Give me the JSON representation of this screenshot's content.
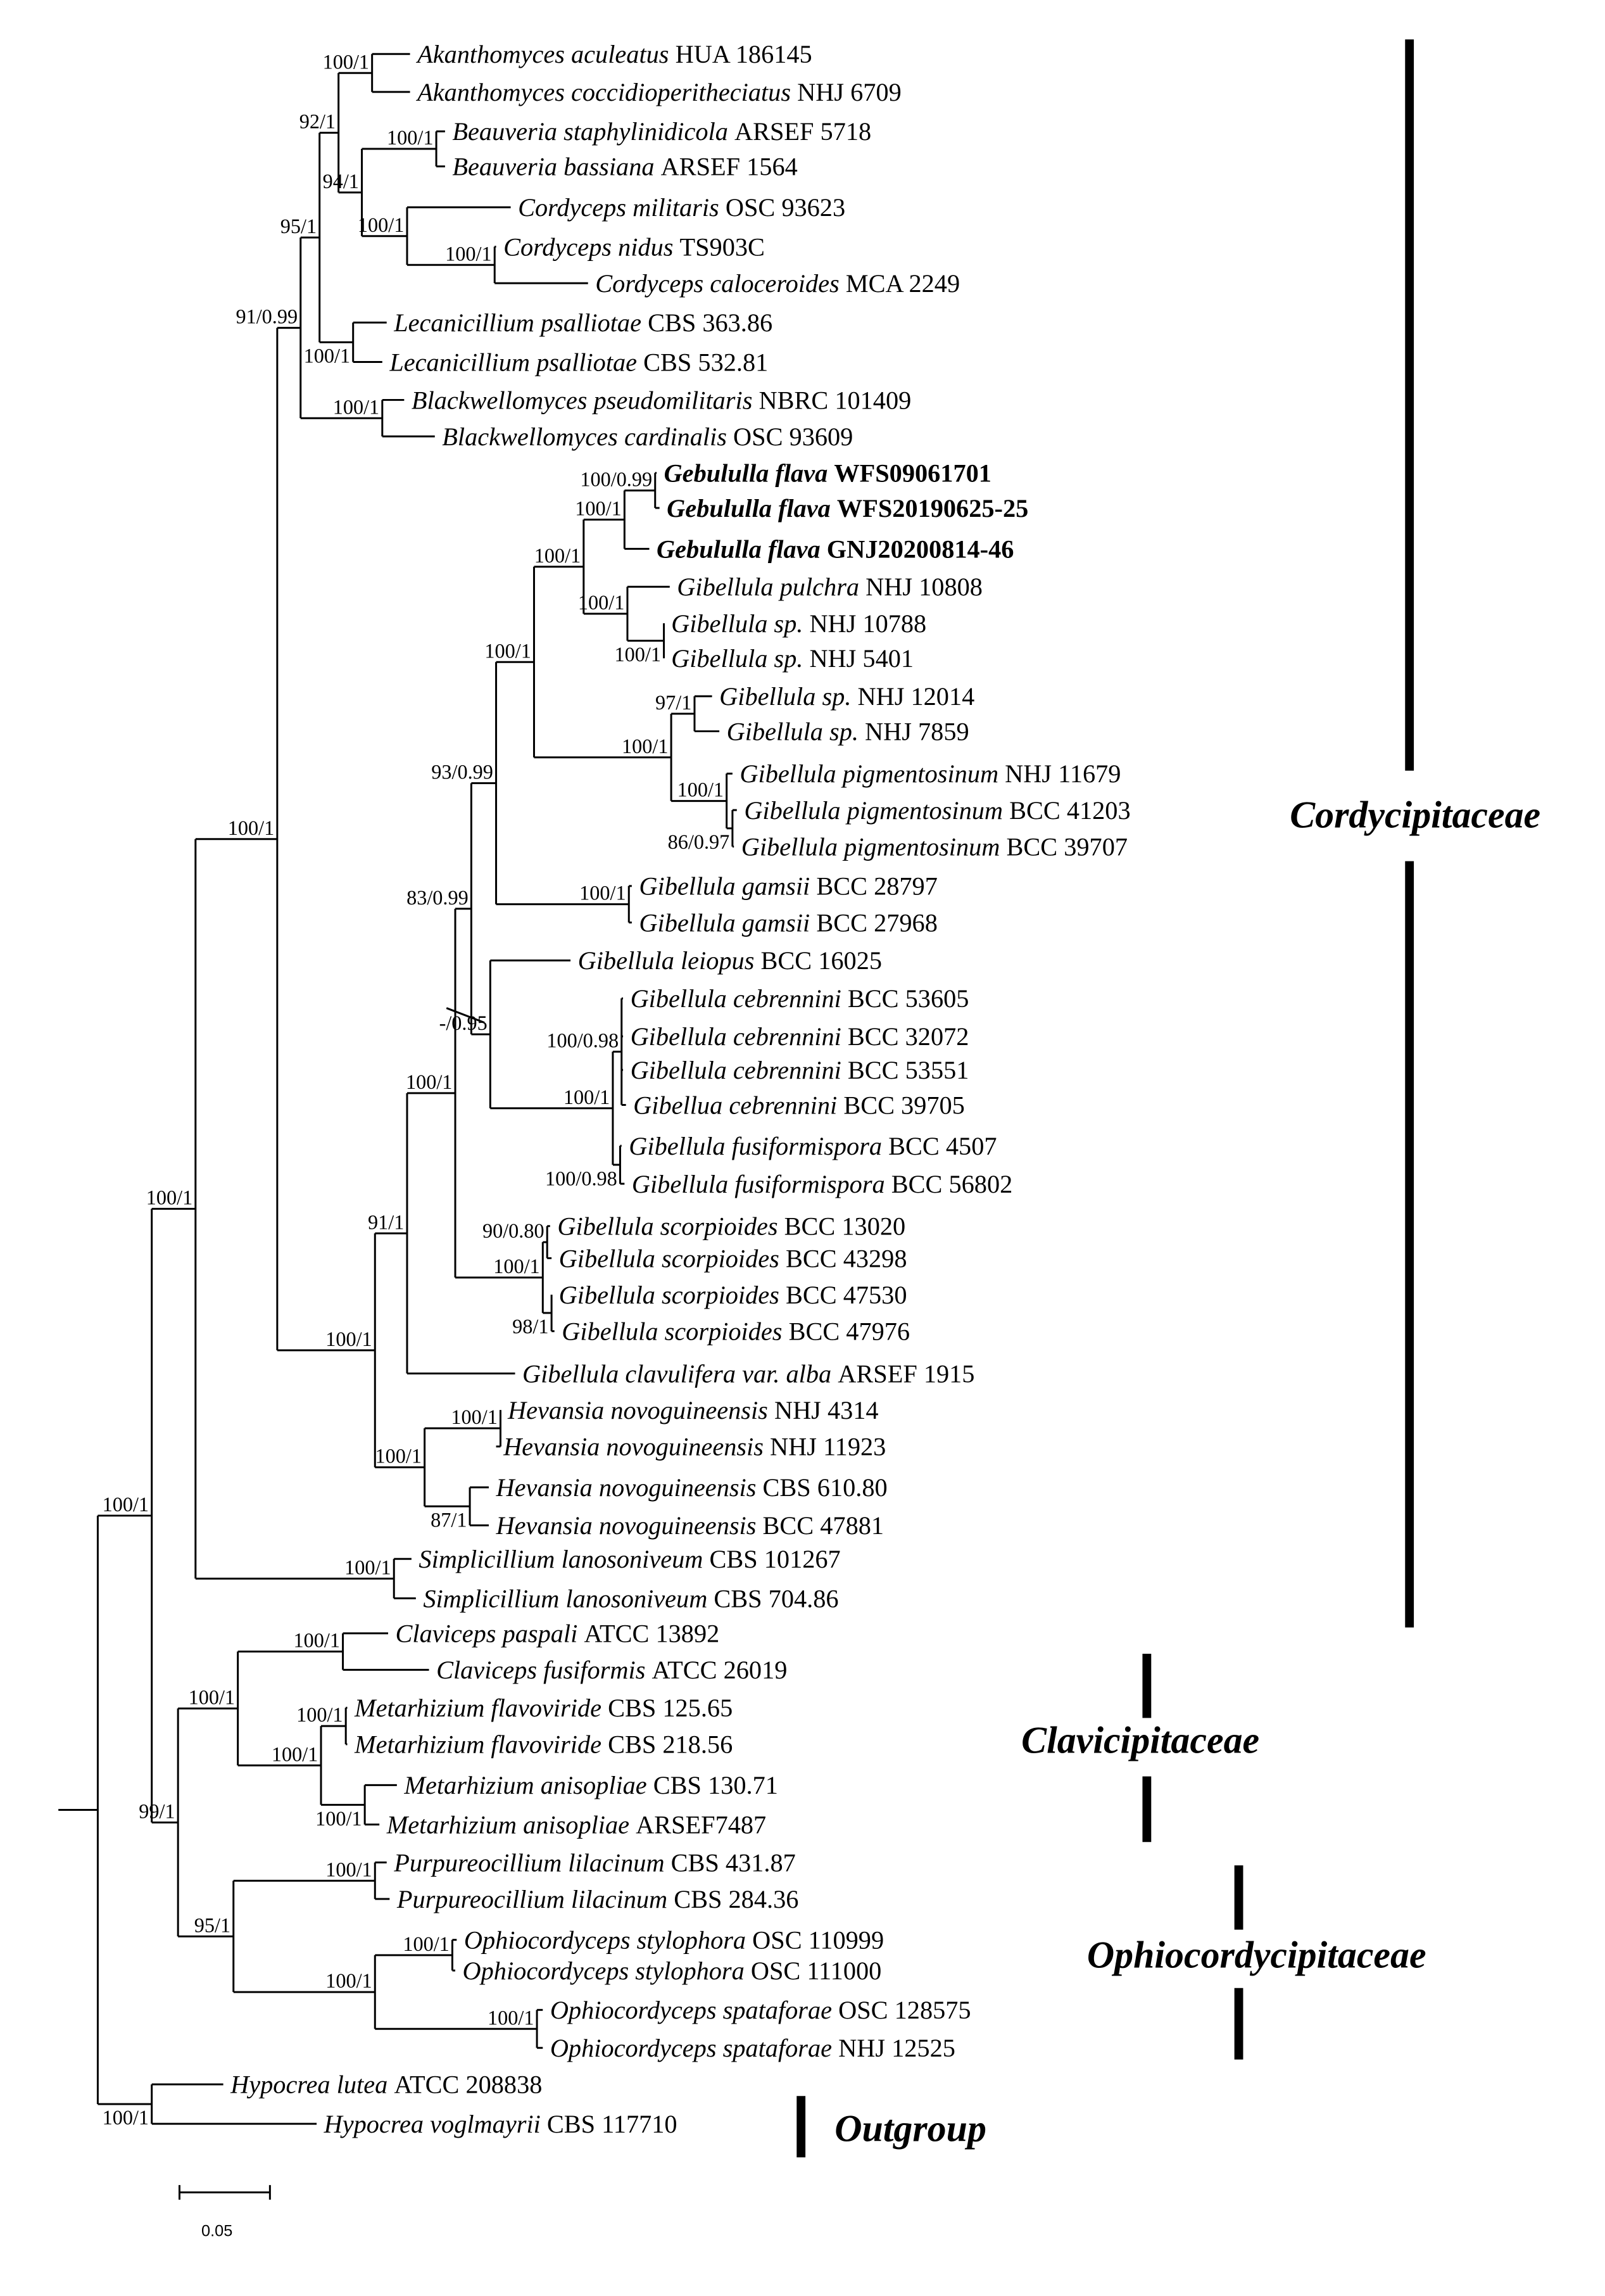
{
  "taxa": [
    {
      "name": "Akanthomyces aculeatus",
      "strain": "HUA 186145"
    },
    {
      "name": "Akanthomyces coccidioperitheciatus",
      "strain": "NHJ 6709"
    },
    {
      "name": "Beauveria staphylinidicola",
      "strain": "ARSEF 5718"
    },
    {
      "name": "Beauveria bassiana",
      "strain": "ARSEF 1564"
    },
    {
      "name": "Cordyceps militaris",
      "strain": "OSC 93623"
    },
    {
      "name": "Cordyceps nidus",
      "strain": "TS903C"
    },
    {
      "name": "Cordyceps caloceroides",
      "strain": "MCA 2249"
    },
    {
      "name": "Lecanicillium psalliotae",
      "strain": "CBS 363.86"
    },
    {
      "name": "Lecanicillium psalliotae",
      "strain": "CBS 532.81"
    },
    {
      "name": "Blackwellomyces pseudomilitaris",
      "strain": "NBRC 101409"
    },
    {
      "name": "Blackwellomyces cardinalis",
      "strain": "OSC 93609"
    },
    {
      "name": "Gebululla flava",
      "strain": "WFS09061701",
      "bold": true
    },
    {
      "name": "Gebululla flava",
      "strain": "WFS20190625-25",
      "bold": true
    },
    {
      "name": "Gebululla flava",
      "strain": "GNJ20200814-46",
      "bold": true
    },
    {
      "name": "Gibellula pulchra",
      "strain": "NHJ 10808"
    },
    {
      "name": "Gibellula sp.",
      "strain": "NHJ 10788"
    },
    {
      "name": "Gibellula sp.",
      "strain": "NHJ 5401"
    },
    {
      "name": "Gibellula sp.",
      "strain": "NHJ 12014"
    },
    {
      "name": "Gibellula sp.",
      "strain": "NHJ 7859"
    },
    {
      "name": "Gibellula pigmentosinum",
      "strain": "NHJ 11679"
    },
    {
      "name": "Gibellula pigmentosinum",
      "strain": "BCC 41203"
    },
    {
      "name": "Gibellula pigmentosinum",
      "strain": "BCC 39707"
    },
    {
      "name": "Gibellula gamsii",
      "strain": "BCC 28797"
    },
    {
      "name": "Gibellula gamsii",
      "strain": "BCC 27968"
    },
    {
      "name": "Gibellula leiopus",
      "strain": "BCC 16025"
    },
    {
      "name": "Gibellula cebrennini",
      "strain": "BCC 53605"
    },
    {
      "name": "Gibellula cebrennini",
      "strain": "BCC 32072"
    },
    {
      "name": "Gibellula cebrennini",
      "strain": "BCC 53551"
    },
    {
      "name": "Gibellua cebrennini",
      "strain": "BCC 39705"
    },
    {
      "name": "Gibellula fusiformispora",
      "strain": "BCC 4507"
    },
    {
      "name": "Gibellula fusiformispora",
      "strain": "BCC 56802"
    },
    {
      "name": "Gibellula scorpioides",
      "strain": "BCC 13020"
    },
    {
      "name": "Gibellula scorpioides",
      "strain": "BCC 43298"
    },
    {
      "name": "Gibellula scorpioides",
      "strain": "BCC 47530"
    },
    {
      "name": "Gibellula scorpioides",
      "strain": "BCC 47976"
    },
    {
      "name": "Gibellula clavulifera var. alba",
      "strain": "ARSEF 1915"
    },
    {
      "name": "Hevansia novoguineensis",
      "strain": "NHJ 4314"
    },
    {
      "name": "Hevansia novoguineensis",
      "strain": "NHJ 11923"
    },
    {
      "name": "Hevansia novoguineensis",
      "strain": "CBS 610.80"
    },
    {
      "name": "Hevansia novoguineensis",
      "strain": "BCC 47881"
    },
    {
      "name": "Simplicillium lanosoniveum",
      "strain": "CBS 101267"
    },
    {
      "name": "Simplicillium lanosoniveum",
      "strain": "CBS 704.86"
    },
    {
      "name": "Claviceps paspali",
      "strain": "ATCC 13892"
    },
    {
      "name": "Claviceps fusiformis",
      "strain": "ATCC 26019"
    },
    {
      "name": "Metarhizium flavoviride",
      "strain": "CBS 125.65"
    },
    {
      "name": "Metarhizium flavoviride",
      "strain": "CBS 218.56"
    },
    {
      "name": "Metarhizium anisopliae",
      "strain": "CBS 130.71"
    },
    {
      "name": "Metarhizium anisopliae",
      "strain": "ARSEF7487"
    },
    {
      "name": "Purpureocillium lilacinum",
      "strain": "CBS 431.87"
    },
    {
      "name": "Purpureocillium lilacinum",
      "strain": "CBS 284.36"
    },
    {
      "name": "Ophiocordyceps stylophora",
      "strain": "OSC 110999"
    },
    {
      "name": "Ophiocordyceps stylophora",
      "strain": "OSC 111000"
    },
    {
      "name": "Ophiocordyceps spataforae",
      "strain": "OSC 128575"
    },
    {
      "name": "Ophiocordyceps spataforae",
      "strain": "NHJ 12525"
    },
    {
      "name": "Hypocrea lutea",
      "strain": "ATCC 208838"
    },
    {
      "name": "Hypocrea voglmayrii",
      "strain": "CBS 117710"
    }
  ],
  "supports": [
    "100/1",
    "100/1",
    "100/1",
    "100/1",
    "94/1",
    "92/1",
    "100/1",
    "95/1",
    "100/1",
    "91/0.99",
    "100/0.99",
    "100/1",
    "100/1",
    "100/1",
    "100/1",
    "97/1",
    "86/0.97",
    "100/1",
    "100/1",
    "100/1",
    "100/1",
    "93/0.99",
    "100/0.98",
    "100/0.98",
    "100/1",
    "-/0.95",
    "83/0.99",
    "90/0.80",
    "98/1",
    "100/1",
    "100/1",
    "91/1",
    "100/1",
    "87/1",
    "100/1",
    "100/1",
    "100/1",
    "100/1",
    "100/1",
    "100/1",
    "100/1",
    "100/1",
    "100/1",
    "100/1",
    "100/1",
    "100/1",
    "100/1",
    "100/1",
    "95/1",
    "99/1",
    "100/1",
    "100/1"
  ],
  "families": {
    "cordycipitaceae": "Cordycipitaceae",
    "clavicipitaceae": "Clavicipitaceae",
    "ophiocordycipitaceae": "Ophiocordycipitaceae",
    "outgroup": "Outgroup"
  },
  "scale_bar": {
    "label": "0.05",
    "value": 0.05
  }
}
